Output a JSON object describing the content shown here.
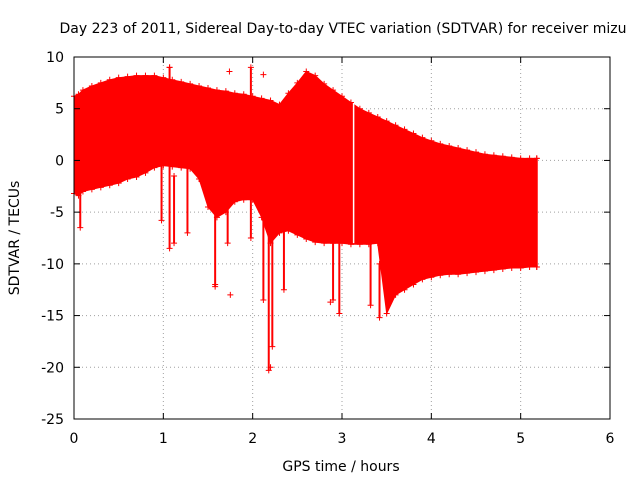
{
  "chart_data": {
    "type": "scatter",
    "title": "Day 223 of 2011, Sidereal Day-to-day VTEC variation (SDTVAR) for receiver mizu",
    "xlabel": "GPS time / hours",
    "ylabel": "SDTVAR / TECUs",
    "xlim": [
      0,
      6
    ],
    "ylim": [
      -25,
      10
    ],
    "xticks": [
      {
        "value": 0,
        "label": "0"
      },
      {
        "value": 1,
        "label": "1"
      },
      {
        "value": 2,
        "label": "2"
      },
      {
        "value": 3,
        "label": "3"
      },
      {
        "value": 4,
        "label": "4"
      },
      {
        "value": 5,
        "label": "5"
      },
      {
        "value": 6,
        "label": "6"
      }
    ],
    "yticks": [
      {
        "value": 10,
        "label": "10"
      },
      {
        "value": 5,
        "label": "5"
      },
      {
        "value": 0,
        "label": "0"
      },
      {
        "value": -5,
        "label": "-5"
      },
      {
        "value": -10,
        "label": "-10"
      },
      {
        "value": -15,
        "label": "-15"
      },
      {
        "value": -20,
        "label": "-20"
      },
      {
        "value": -25,
        "label": "-25"
      }
    ],
    "grid": true,
    "marker": "+",
    "series_color": "#ff0000",
    "series": [
      {
        "name": "SDTVAR",
        "envelope": {
          "x": [
            0.0,
            0.05,
            0.1,
            0.2,
            0.3,
            0.4,
            0.5,
            0.6,
            0.7,
            0.8,
            0.9,
            1.0,
            1.1,
            1.2,
            1.3,
            1.4,
            1.5,
            1.6,
            1.7,
            1.8,
            1.9,
            2.0,
            2.1,
            2.2,
            2.3,
            2.4,
            2.5,
            2.6,
            2.7,
            2.8,
            2.9,
            3.0,
            3.1,
            3.2,
            3.3,
            3.4,
            3.5,
            3.6,
            3.7,
            3.8,
            3.9,
            4.0,
            4.1,
            4.2,
            4.3,
            4.4,
            4.5,
            4.6,
            4.7,
            4.8,
            4.9,
            5.0,
            5.1,
            5.18
          ],
          "upper": [
            6.2,
            6.4,
            6.8,
            7.2,
            7.5,
            7.8,
            8.0,
            8.1,
            8.2,
            8.2,
            8.2,
            8.0,
            7.8,
            7.6,
            7.4,
            7.2,
            7.0,
            6.8,
            6.7,
            6.5,
            6.4,
            6.2,
            6.0,
            5.8,
            5.4,
            6.5,
            7.5,
            8.6,
            8.2,
            7.4,
            6.8,
            6.2,
            5.6,
            5.0,
            4.6,
            4.2,
            3.8,
            3.4,
            3.0,
            2.6,
            2.2,
            1.9,
            1.6,
            1.4,
            1.2,
            1.0,
            0.8,
            0.6,
            0.5,
            0.4,
            0.3,
            0.2,
            0.2,
            0.2
          ],
          "lower": [
            -3.2,
            -3.4,
            -3.0,
            -2.8,
            -2.6,
            -2.4,
            -2.2,
            -1.8,
            -1.6,
            -1.2,
            -0.7,
            -0.5,
            -0.6,
            -0.7,
            -0.8,
            -1.8,
            -4.5,
            -5.5,
            -5.0,
            -4.0,
            -3.8,
            -3.8,
            -5.5,
            -8.0,
            -7.0,
            -6.8,
            -7.2,
            -7.6,
            -7.9,
            -8.0,
            -8.0,
            -8.0,
            -8.1,
            -8.1,
            -8.1,
            -8.0,
            -14.8,
            -13.0,
            -12.5,
            -12.0,
            -11.5,
            -11.3,
            -11.1,
            -11.0,
            -11.0,
            -10.9,
            -10.8,
            -10.7,
            -10.6,
            -10.5,
            -10.4,
            -10.4,
            -10.3,
            -10.3
          ]
        },
        "spikes": [
          {
            "x": 0.07,
            "ymin": -6.5,
            "ymax": -2.0
          },
          {
            "x": 0.98,
            "ymin": -5.8,
            "ymax": 1.0
          },
          {
            "x": 1.07,
            "ymin": -8.5,
            "ymax": 9.0
          },
          {
            "x": 1.12,
            "ymin": -8.0,
            "ymax": -1.5
          },
          {
            "x": 1.27,
            "ymin": -7.0,
            "ymax": 0.0
          },
          {
            "x": 1.58,
            "ymin": -12.2,
            "ymax": -3.0
          },
          {
            "x": 1.72,
            "ymin": -8.0,
            "ymax": -3.0
          },
          {
            "x": 1.98,
            "ymin": -7.5,
            "ymax": 9.0
          },
          {
            "x": 2.12,
            "ymin": -13.5,
            "ymax": -5.0
          },
          {
            "x": 2.18,
            "ymin": -20.3,
            "ymax": -6.0
          },
          {
            "x": 2.22,
            "ymin": -18.0,
            "ymax": -6.0
          },
          {
            "x": 2.35,
            "ymin": -12.5,
            "ymax": -6.0
          },
          {
            "x": 2.9,
            "ymin": -13.5,
            "ymax": -8.0
          },
          {
            "x": 2.97,
            "ymin": -14.8,
            "ymax": -8.0
          },
          {
            "x": 3.32,
            "ymin": -14.0,
            "ymax": -8.0
          },
          {
            "x": 3.42,
            "ymin": -15.2,
            "ymax": -10.0
          },
          {
            "x": 5.18,
            "ymin": -10.3,
            "ymax": 0.2
          }
        ],
        "gaps": [
          {
            "x": 3.13,
            "ymin": -8.0,
            "ymax": 5.5
          }
        ],
        "outliers": [
          {
            "x": 1.74,
            "y": 8.6
          },
          {
            "x": 2.12,
            "y": 8.3
          },
          {
            "x": 1.75,
            "y": -13.0
          },
          {
            "x": 1.58,
            "y": -12.0
          },
          {
            "x": 2.87,
            "y": -13.7
          },
          {
            "x": 2.2,
            "y": -20.0
          },
          {
            "x": 1.07,
            "y": 9.0
          }
        ]
      }
    ]
  }
}
